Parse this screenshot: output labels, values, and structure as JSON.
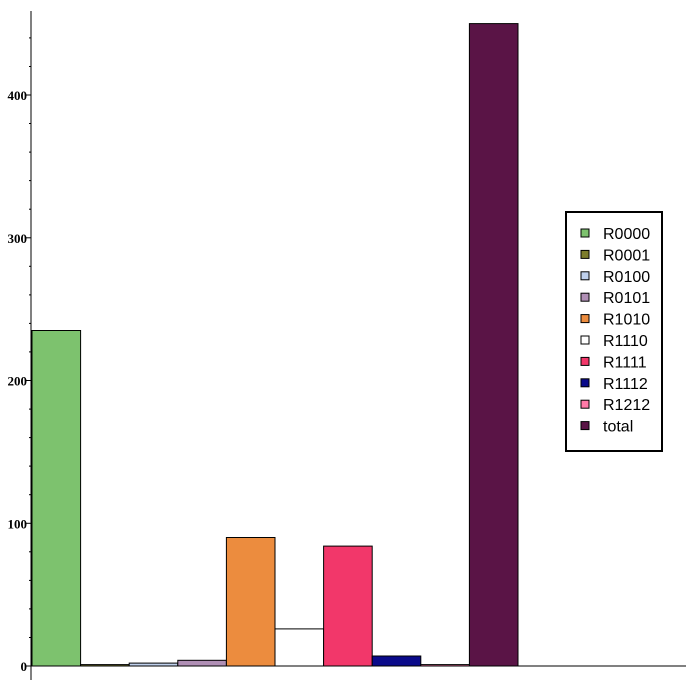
{
  "chart_data": {
    "type": "bar",
    "title": "",
    "xlabel": "",
    "ylabel": "",
    "ylim": [
      0,
      455
    ],
    "y_major_ticks": [
      0,
      100,
      200,
      300,
      400
    ],
    "y_minor_step": 20,
    "grid": false,
    "legend_position": "right",
    "series": [
      {
        "name": "R0000",
        "value": 235,
        "color": "#7dc26e"
      },
      {
        "name": "R0001",
        "value": 1,
        "color": "#7c7c2c"
      },
      {
        "name": "R0100",
        "value": 2,
        "color": "#bfd0ec"
      },
      {
        "name": "R0101",
        "value": 4,
        "color": "#b08fb5"
      },
      {
        "name": "R1010",
        "value": 90,
        "color": "#ec8c3e"
      },
      {
        "name": "R1110",
        "value": 26,
        "color": "#ffffff"
      },
      {
        "name": "R1111",
        "value": 84,
        "color": "#f2376a"
      },
      {
        "name": "R1112",
        "value": 7,
        "color": "#0a0a8a"
      },
      {
        "name": "R1212",
        "value": 1,
        "color": "#ff7aa8"
      },
      {
        "name": "total",
        "value": 450,
        "color": "#5a1446"
      }
    ]
  }
}
